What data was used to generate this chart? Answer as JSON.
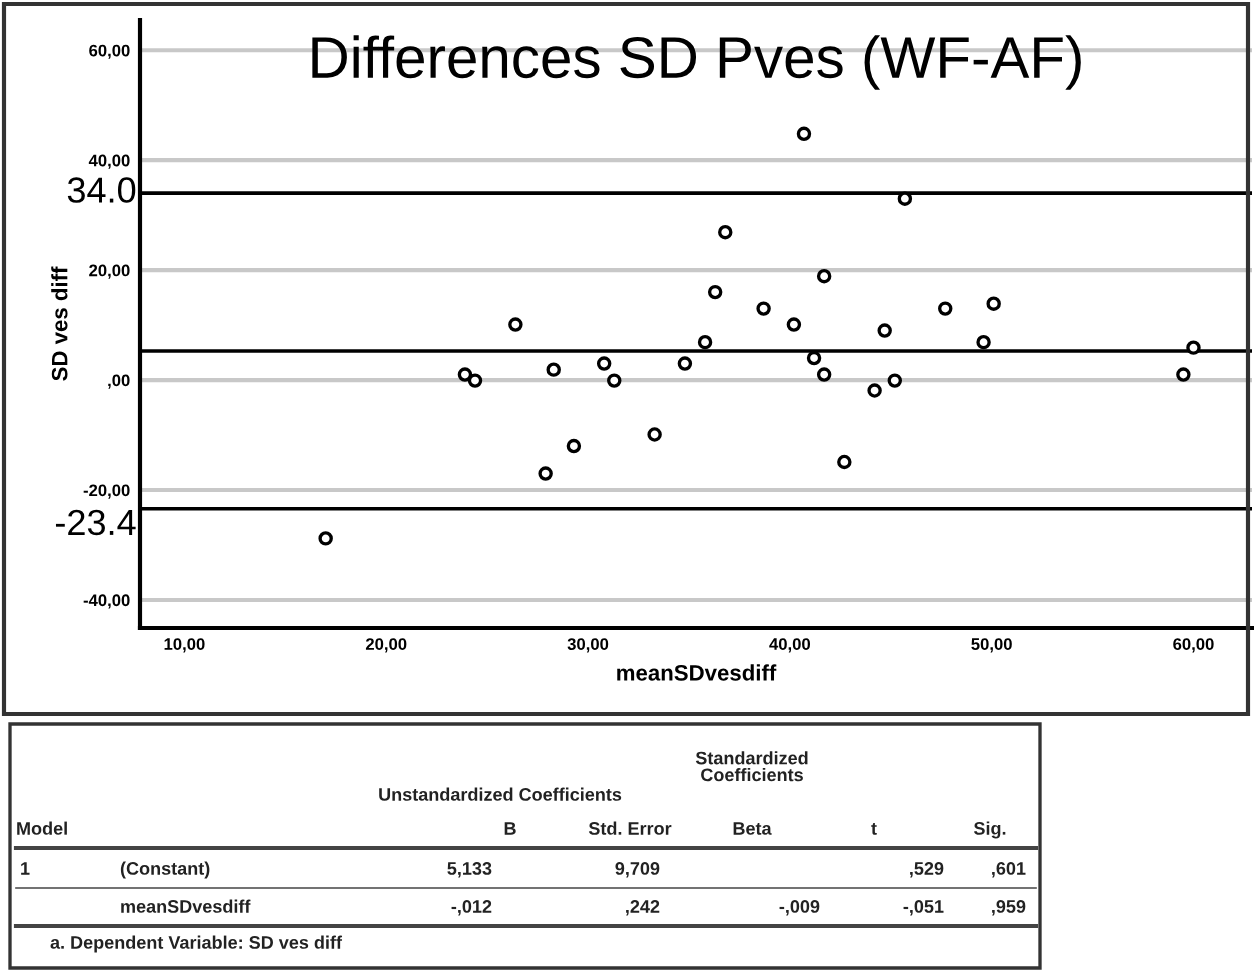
{
  "chart_data": {
    "type": "scatter",
    "title": "Differences SD Pves (WF-AF)",
    "xlabel": "meanSDvesdiff",
    "ylabel": "SD ves diff",
    "x": [
      17.0,
      23.9,
      24.4,
      26.4,
      27.9,
      28.3,
      29.3,
      30.8,
      31.3,
      33.3,
      34.8,
      35.8,
      36.3,
      36.8,
      38.7,
      40.2,
      40.7,
      41.2,
      41.7,
      41.7,
      42.7,
      44.2,
      44.7,
      45.2,
      45.7,
      47.7,
      49.6,
      50.1,
      59.5,
      60.0
    ],
    "series": [
      {
        "color": "#000000",
        "values": [
          -28.8,
          1.0,
          -0.1,
          10.1,
          -17.0,
          1.9,
          -12.0,
          3.0,
          -0.1,
          -9.9,
          3.0,
          6.9,
          16.0,
          26.9,
          13.0,
          10.1,
          44.8,
          4.0,
          18.9,
          1.0,
          -14.9,
          -1.9,
          9.0,
          -0.1,
          33.0,
          13.0,
          6.9,
          13.9,
          1.0,
          5.9
        ]
      }
    ],
    "marker": "circle",
    "grid": "y",
    "xlim": [
      7.8,
      62.9
    ],
    "ylim": [
      -45.1,
      65.5
    ],
    "xticks": [
      {
        "value": 10,
        "label": "10,00"
      },
      {
        "value": 20,
        "label": "20,00"
      },
      {
        "value": 30,
        "label": "30,00"
      },
      {
        "value": 40,
        "label": "40,00"
      },
      {
        "value": 50,
        "label": "50,00"
      },
      {
        "value": 60,
        "label": "60,00"
      }
    ],
    "yticks": [
      {
        "value": -40,
        "label": "-40,00"
      },
      {
        "value": -20,
        "label": "-20,00"
      },
      {
        "value": 0,
        "label": ",00"
      },
      {
        "value": 20,
        "label": "20,00"
      },
      {
        "value": 40,
        "label": "40,00"
      },
      {
        "value": 60,
        "label": "60,00"
      }
    ],
    "ref_lines": [
      {
        "axis": "y",
        "value": 34.0,
        "label": "34.0",
        "color": "#000000"
      },
      {
        "axis": "y",
        "value": 5.3,
        "color": "#000000"
      },
      {
        "axis": "y",
        "value": -23.4,
        "label": "-23.4",
        "color": "#000000"
      }
    ],
    "annotations": [
      "Unstandardized Coefficients",
      "Standardized\nCoefficients",
      "Model",
      "B",
      "Std. Error",
      "Beta",
      "t",
      "Sig.",
      "1",
      "(Constant)",
      "5,133",
      "9,709",
      ",529",
      ",601",
      "meanSDvesdiff",
      "-,012",
      ",242",
      "-,009",
      "-,051",
      ",959",
      "a. Dependent Variable: SD ves diff"
    ]
  }
}
